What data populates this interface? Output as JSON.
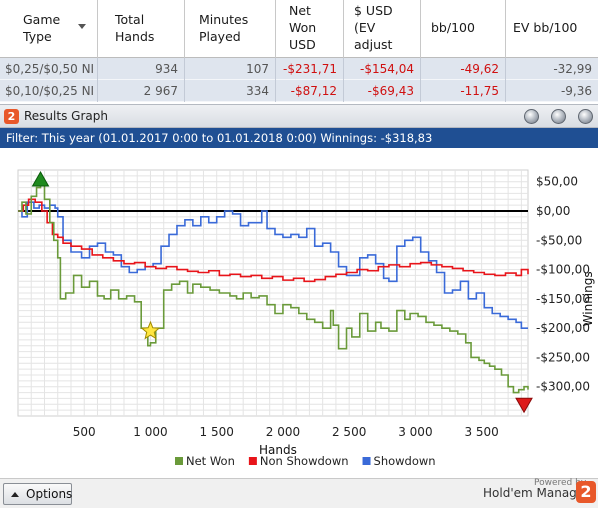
{
  "table": {
    "headers": [
      {
        "name": "col-game-type",
        "label": "Game\nType"
      },
      {
        "name": "col-total-hands",
        "label": "Total\nHands"
      },
      {
        "name": "col-minutes-played",
        "label": "Minutes\nPlayed"
      },
      {
        "name": "col-net-won",
        "label": "Net\nWon\nUSD"
      },
      {
        "name": "col-ev-adjusted",
        "label": "$ USD\n(EV\nadjust"
      },
      {
        "name": "col-bb100",
        "label": "bb/100"
      },
      {
        "name": "col-ev-bb100",
        "label": "EV bb/100"
      }
    ],
    "rows": [
      [
        "$0,25/$0,50 NI",
        "934",
        "107",
        "-$231,71",
        "-$154,04",
        "-49,62",
        "-32,99"
      ],
      [
        "$0,10/$0,25 NI",
        "2 967",
        "334",
        "-$87,12",
        "-$69,43",
        "-11,75",
        "-9,36"
      ]
    ]
  },
  "panel": {
    "logo_digit": "2",
    "title": "Results Graph",
    "filter_text": "Filter: This year (01.01.2017 0:00 to 01.01.2018 0:00) Winnings: -$318,83"
  },
  "footer": {
    "options_label": "Options",
    "powered_by": "Powered by",
    "brand": "Hold'em Manager",
    "brand_digit": "2"
  },
  "colors": {
    "net_won": "#6a9a3a",
    "non_showdown": "#e8141a",
    "showdown": "#3a6ad8",
    "filter_bar": "#1f4f93",
    "row_bg": "#dfe5ee"
  },
  "chart_data": {
    "type": "line",
    "xlabel": "Hands",
    "ylabel": "Winnings",
    "xlim": [
      0,
      3850
    ],
    "ylim": [
      -350,
      70
    ],
    "x_ticks": [
      500,
      1000,
      1500,
      2000,
      2500,
      3000,
      3500
    ],
    "x_tick_labels": [
      "500",
      "1 000",
      "1 500",
      "2 000",
      "2 500",
      "3 000",
      "3 500"
    ],
    "y_ticks": [
      50,
      0,
      -50,
      -100,
      -150,
      -200,
      -250,
      -300
    ],
    "y_tick_labels": [
      "$50,00",
      "$0,00",
      "-$50,00",
      "-$100,00",
      "-$150,00",
      "-$200,00",
      "-$250,00",
      "-$300,00"
    ],
    "grid": true,
    "legend_position": "bottom",
    "series": [
      {
        "name": "Net Won",
        "x": [
          0,
          30,
          60,
          100,
          140,
          170,
          200,
          240,
          270,
          300,
          320,
          360,
          420,
          480,
          540,
          600,
          650,
          700,
          760,
          820,
          880,
          930,
          980,
          1000,
          1040,
          1100,
          1160,
          1220,
          1280,
          1320,
          1380,
          1450,
          1520,
          1600,
          1650,
          1700,
          1760,
          1820,
          1880,
          1940,
          2000,
          2060,
          2120,
          2180,
          2240,
          2300,
          2360,
          2380,
          2420,
          2480,
          2520,
          2580,
          2640,
          2700,
          2740,
          2800,
          2860,
          2920,
          2960,
          3020,
          3080,
          3140,
          3200,
          3260,
          3320,
          3380,
          3420,
          3480,
          3520,
          3560,
          3600,
          3650,
          3700,
          3740,
          3780,
          3820,
          3850
        ],
        "y": [
          0,
          15,
          -5,
          25,
          40,
          45,
          20,
          -20,
          -50,
          -80,
          -150,
          -140,
          -110,
          -130,
          -120,
          -145,
          -150,
          -135,
          -150,
          -145,
          -155,
          -200,
          -230,
          -225,
          -200,
          -135,
          -125,
          -120,
          -140,
          -125,
          -130,
          -135,
          -140,
          -145,
          -150,
          -140,
          -148,
          -145,
          -160,
          -175,
          -160,
          -165,
          -175,
          -185,
          -190,
          -200,
          -170,
          -195,
          -235,
          -200,
          -215,
          -175,
          -205,
          -190,
          -200,
          -205,
          -170,
          -185,
          -175,
          -180,
          -190,
          -195,
          -200,
          -205,
          -210,
          -225,
          -250,
          -255,
          -260,
          -265,
          -270,
          -280,
          -300,
          -310,
          -305,
          -300,
          -305
        ]
      },
      {
        "name": "Non Showdown",
        "x": [
          0,
          40,
          80,
          130,
          180,
          220,
          260,
          300,
          340,
          400,
          480,
          560,
          640,
          720,
          800,
          880,
          960,
          1040,
          1120,
          1200,
          1280,
          1360,
          1440,
          1520,
          1600,
          1680,
          1760,
          1840,
          1920,
          2000,
          2080,
          2160,
          2240,
          2320,
          2400,
          2480,
          2560,
          2640,
          2720,
          2800,
          2880,
          2960,
          3040,
          3120,
          3200,
          3280,
          3360,
          3440,
          3520,
          3600,
          3680,
          3760,
          3800,
          3850
        ],
        "y": [
          0,
          10,
          20,
          15,
          0,
          -20,
          -40,
          -45,
          -55,
          -60,
          -65,
          -75,
          -80,
          -85,
          -90,
          -88,
          -95,
          -98,
          -95,
          -100,
          -103,
          -105,
          -102,
          -110,
          -108,
          -112,
          -110,
          -115,
          -112,
          -118,
          -115,
          -120,
          -117,
          -112,
          -108,
          -105,
          -100,
          -102,
          -95,
          -92,
          -95,
          -90,
          -88,
          -92,
          -95,
          -98,
          -102,
          -105,
          -108,
          -110,
          -106,
          -110,
          -100,
          -108
        ]
      },
      {
        "name": "Showdown",
        "x": [
          0,
          30,
          70,
          120,
          160,
          200,
          240,
          280,
          300,
          340,
          400,
          480,
          540,
          600,
          660,
          720,
          780,
          840,
          900,
          960,
          1020,
          1080,
          1140,
          1200,
          1260,
          1320,
          1380,
          1440,
          1500,
          1560,
          1620,
          1680,
          1740,
          1800,
          1840,
          1880,
          1940,
          2000,
          2060,
          2120,
          2180,
          2240,
          2300,
          2360,
          2420,
          2480,
          2520,
          2580,
          2640,
          2700,
          2760,
          2800,
          2860,
          2920,
          2980,
          3040,
          3100,
          3160,
          3220,
          3280,
          3340,
          3400,
          3460,
          3520,
          3580,
          3640,
          3700,
          3760,
          3800,
          3850
        ],
        "y": [
          0,
          -10,
          15,
          5,
          10,
          5,
          10,
          5,
          -10,
          -50,
          -70,
          -80,
          -60,
          -55,
          -70,
          -75,
          -95,
          -105,
          -100,
          -95,
          -90,
          -60,
          -40,
          -25,
          -15,
          -25,
          -10,
          -20,
          -10,
          0,
          -5,
          -25,
          -20,
          -20,
          0,
          -30,
          -40,
          -45,
          -40,
          -45,
          -30,
          -60,
          -55,
          -70,
          -95,
          -110,
          -110,
          -80,
          -75,
          -90,
          -115,
          -120,
          -60,
          -50,
          -45,
          -70,
          -85,
          -105,
          -140,
          -135,
          -120,
          -150,
          -140,
          -165,
          -175,
          -180,
          -185,
          -190,
          -200,
          -200
        ]
      }
    ],
    "markers": [
      {
        "name": "max-marker",
        "shape": "triangle-up",
        "color": "#1e8a1e",
        "x": 170,
        "y": 53
      },
      {
        "name": "min-marker",
        "shape": "triangle-down",
        "color": "#dd1a1a",
        "x": 3820,
        "y": -330
      },
      {
        "name": "star-marker",
        "shape": "star",
        "color": "#ffe640",
        "x": 1000,
        "y": -205
      }
    ]
  }
}
